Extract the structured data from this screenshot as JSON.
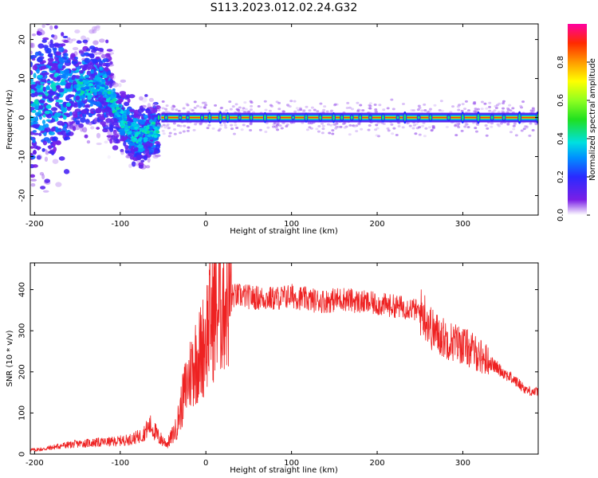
{
  "title": "S113.2023.012.02.24.G32",
  "colors": {
    "snr_line": "#ee2222",
    "axis": "#000000"
  },
  "chart_data": [
    {
      "type": "heatmap",
      "xlabel": "Height of straight line (km)",
      "ylabel": "Frequency (Hz)",
      "xlim": [
        -205,
        388
      ],
      "ylim": [
        -25,
        24
      ],
      "xticks": [
        -200,
        -100,
        0,
        100,
        200,
        300
      ],
      "yticks": [
        -20,
        -10,
        0,
        10,
        20
      ],
      "colorbar": {
        "label": "Normalized spectral amplitude",
        "range": [
          0,
          1
        ],
        "ticks": [
          "0.0",
          "0.2",
          "0.4",
          "0.6",
          "0.8"
        ],
        "colormap": "gist_ncar-like (white, purple, blue, cyan, green, yellow, orange, red, magenta)"
      },
      "features": {
        "spread_region_km": [
          -205,
          -55
        ],
        "spread_center_freq_hz": [
          [
            -180,
            5
          ],
          [
            -150,
            8
          ],
          [
            -120,
            8
          ],
          [
            -100,
            0
          ],
          [
            -80,
            -5
          ],
          [
            -60,
            -3
          ]
        ],
        "narrow_line_region_km": [
          -55,
          388
        ],
        "narrow_line_freq_hz": 0
      }
    },
    {
      "type": "line",
      "xlabel": "Height of straight line (km)",
      "ylabel": "SNR (10 * v/v)",
      "xlim": [
        -205,
        388
      ],
      "ylim": [
        0,
        465
      ],
      "xticks": [
        -200,
        -100,
        0,
        100,
        200,
        300
      ],
      "yticks": [
        0,
        100,
        200,
        300,
        400
      ],
      "series": [
        {
          "x": [
            -205,
            -190,
            -170,
            -150,
            -130,
            -110,
            -90,
            -75,
            -65,
            -55,
            -45,
            -35,
            -25,
            -15,
            -5,
            5,
            15,
            25,
            40,
            60,
            80,
            100,
            120,
            140,
            160,
            180,
            200,
            220,
            240,
            255,
            265,
            280,
            300,
            320,
            340,
            360,
            375,
            388
          ],
          "y": [
            10,
            12,
            20,
            25,
            28,
            30,
            35,
            45,
            70,
            40,
            25,
            60,
            150,
            220,
            250,
            330,
            360,
            385,
            385,
            380,
            378,
            385,
            375,
            372,
            378,
            370,
            365,
            360,
            355,
            340,
            300,
            280,
            265,
            240,
            210,
            180,
            155,
            150
          ]
        }
      ]
    }
  ]
}
